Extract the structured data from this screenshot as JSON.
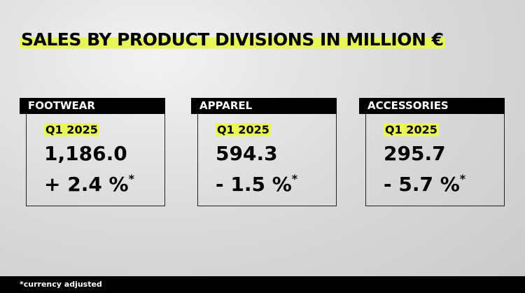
{
  "header": {
    "title": "SALES BY PRODUCT DIVISIONS IN MILLION €"
  },
  "cards": [
    {
      "label": "FOOTWEAR",
      "period": "Q1 2025",
      "value": "1,186.0",
      "change": "+ 2.4 %",
      "note_marker": "*"
    },
    {
      "label": "APPAREL",
      "period": "Q1 2025",
      "value": "594.3",
      "change": "- 1.5 %",
      "note_marker": "*"
    },
    {
      "label": "ACCESSORIES",
      "period": "Q1 2025",
      "value": "295.7",
      "change": "- 5.7 %",
      "note_marker": "*"
    }
  ],
  "footer": {
    "note": "*currency adjusted"
  }
}
